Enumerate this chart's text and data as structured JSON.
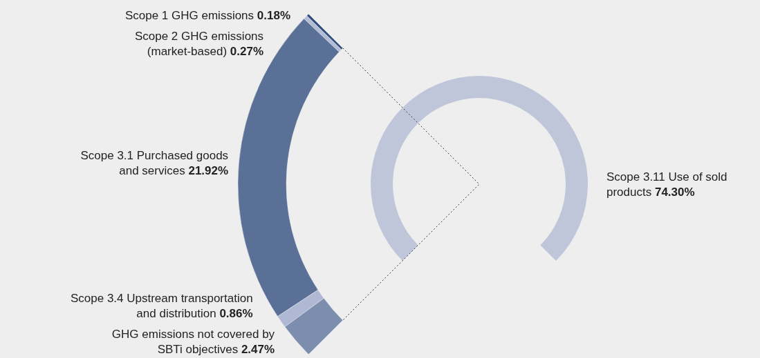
{
  "chart_data": {
    "type": "other",
    "categories": [
      "Scope 1 GHG emissions",
      "Scope 2 GHG emissions\n(market-based)",
      "Scope 3.1 Purchased goods\nand services",
      "Scope 3.4 Upstream transportation\nand distribution",
      "GHG emissions not covered by\nSBTi objectives",
      "Scope 3.11 Use of sold\nproducts"
    ],
    "values": [
      0.18,
      0.27,
      21.92,
      0.86,
      2.47,
      74.3
    ],
    "value_labels": [
      "0.18%",
      "0.27%",
      "21.92%",
      "0.86%",
      "2.47%",
      "74.30%"
    ],
    "colors": [
      "#2e4e7e",
      "#b3bcd5",
      "#5b7096",
      "#b0b9d3",
      "#7d8dae",
      "#bfc6da"
    ]
  }
}
